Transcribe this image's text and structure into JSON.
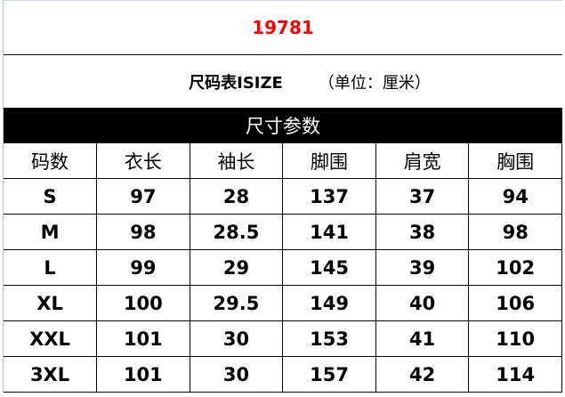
{
  "title": {
    "text": "19781",
    "color": "#ff0000"
  },
  "subtitle": {
    "main": "尺码表ISIZE",
    "unit": "（单位：厘米）"
  },
  "band": "尺寸参数",
  "headers": [
    "码数",
    "衣长",
    "袖长",
    "脚围",
    "肩宽",
    "胸围"
  ],
  "rows": [
    [
      "S",
      "97",
      "28",
      "137",
      "37",
      "94"
    ],
    [
      "M",
      "98",
      "28.5",
      "141",
      "38",
      "98"
    ],
    [
      "L",
      "99",
      "29",
      "145",
      "39",
      "102"
    ],
    [
      "XL",
      "100",
      "29.5",
      "149",
      "40",
      "106"
    ],
    [
      "XXL",
      "101",
      "30",
      "153",
      "41",
      "110"
    ],
    [
      "3XL",
      "101",
      "30",
      "157",
      "42",
      "114"
    ]
  ]
}
